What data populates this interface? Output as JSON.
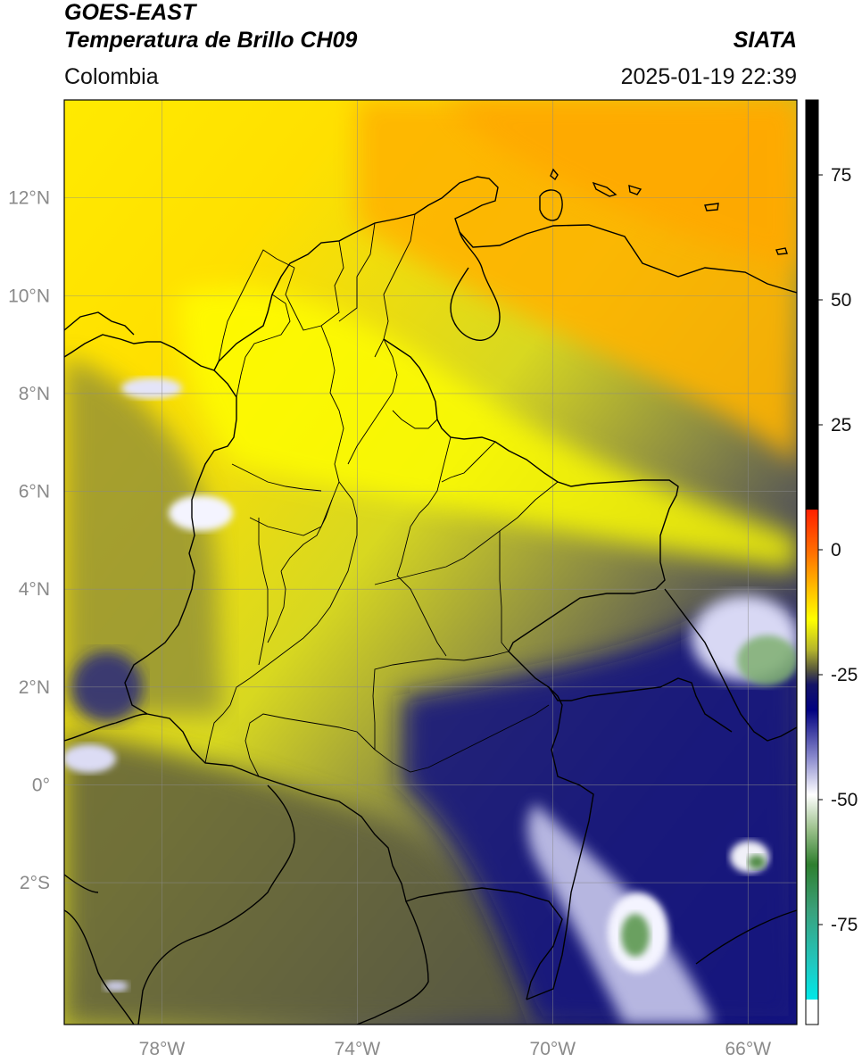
{
  "header": {
    "satellite": "GOES-EAST",
    "product": "Temperatura de Brillo CH09",
    "organization": "SIATA",
    "region": "Colombia",
    "datetime": "2025-01-19 22:39"
  },
  "axes": {
    "lat_ticks": [
      {
        "value": 12,
        "label": "12°N"
      },
      {
        "value": 10,
        "label": "10°N"
      },
      {
        "value": 8,
        "label": "8°N"
      },
      {
        "value": 6,
        "label": "6°N"
      },
      {
        "value": 4,
        "label": "4°N"
      },
      {
        "value": 2,
        "label": "2°N"
      },
      {
        "value": 0,
        "label": "0°"
      },
      {
        "value": -2,
        "label": "2°S"
      }
    ],
    "lon_ticks": [
      {
        "value": -78,
        "label": "78°W"
      },
      {
        "value": -74,
        "label": "74°W"
      },
      {
        "value": -70,
        "label": "70°W"
      },
      {
        "value": -66,
        "label": "66°W"
      }
    ],
    "lon_range": [
      -80.0,
      -65.0
    ],
    "lat_range": [
      -4.9,
      14.0
    ],
    "grid": true
  },
  "colorbar": {
    "ticks": [
      {
        "value": 75,
        "label": "75"
      },
      {
        "value": 50,
        "label": "50"
      },
      {
        "value": 25,
        "label": "25"
      },
      {
        "value": 0,
        "label": "0"
      },
      {
        "value": -25,
        "label": "-25"
      },
      {
        "value": -50,
        "label": "-50"
      },
      {
        "value": -75,
        "label": "-75"
      }
    ],
    "range": [
      -95,
      90
    ],
    "stops": [
      {
        "value": 90,
        "color": "#000000"
      },
      {
        "value": 8,
        "color": "#000000"
      },
      {
        "value": 8,
        "color": "#ff2000"
      },
      {
        "value": 0,
        "color": "#ff6a00"
      },
      {
        "value": -8,
        "color": "#ffc000"
      },
      {
        "value": -14,
        "color": "#ffff00"
      },
      {
        "value": -20,
        "color": "#b5b52c"
      },
      {
        "value": -24,
        "color": "#58583c"
      },
      {
        "value": -27,
        "color": "#141466"
      },
      {
        "value": -32,
        "color": "#000080"
      },
      {
        "value": -42,
        "color": "#9090d0"
      },
      {
        "value": -49,
        "color": "#ffffff"
      },
      {
        "value": -56,
        "color": "#9ac08a"
      },
      {
        "value": -63,
        "color": "#2e7f2e"
      },
      {
        "value": -72,
        "color": "#3aa07a"
      },
      {
        "value": -83,
        "color": "#20c8c0"
      },
      {
        "value": -90,
        "color": "#00e8e8"
      },
      {
        "value": -90,
        "color": "#ffffff"
      },
      {
        "value": -95,
        "color": "#ffffff"
      }
    ]
  },
  "colors": {
    "warm_orange": "#ffb000",
    "yellow": "#ffff00",
    "olive": "#b0b040",
    "dark_olive": "#55553a",
    "navy": "#10108a",
    "cloud_white": "#e8e8f4",
    "cloud_green": "#5e9a55",
    "border": "#000000",
    "grid": "#8a8a8a"
  }
}
